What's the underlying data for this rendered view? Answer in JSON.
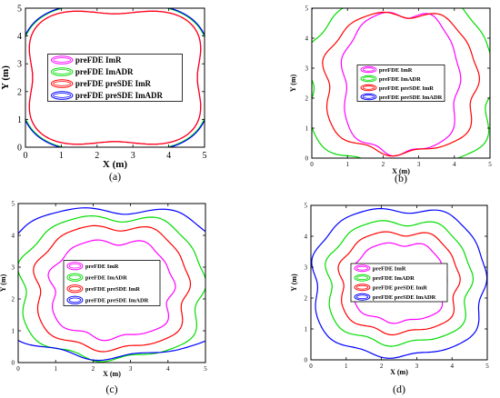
{
  "colors": {
    "magenta": "#ff00ff",
    "green": "#00dd00",
    "red": "#ff0000",
    "blue": "#0000ff"
  },
  "chart_data": [
    {
      "type": "line",
      "panel_label": "(a)",
      "xlabel": "X (m)",
      "ylabel": "Y (m)",
      "xlim": [
        0,
        5
      ],
      "ylim": [
        0,
        5
      ],
      "xticks": [
        "0",
        "1",
        "2",
        "3",
        "4",
        "5"
      ],
      "yticks": [
        "0",
        "1",
        "2",
        "3",
        "4",
        "5"
      ],
      "legend_position": "center",
      "series": [
        {
          "name": "preFDE ImR",
          "color": "magenta",
          "shape": {
            "cx": 2.5,
            "cy": 2.5,
            "rx": 2.3,
            "ry": 2.3,
            "sq": 0.25,
            "wob": 0.0
          }
        },
        {
          "name": "preFDE ImADR",
          "color": "green",
          "shape": {
            "cx": 2.5,
            "cy": 2.5,
            "rx": 2.6,
            "ry": 2.6,
            "sq": 0.15,
            "wob": 0.0
          }
        },
        {
          "name": "preFDE preSDE ImR",
          "color": "red",
          "shape": {
            "cx": 2.5,
            "cy": 2.5,
            "rx": 2.3,
            "ry": 2.3,
            "sq": 0.25,
            "wob": 0.0
          }
        },
        {
          "name": "preFDE preSDE ImADR",
          "color": "blue",
          "shape": {
            "cx": 2.5,
            "cy": 2.5,
            "rx": 2.62,
            "ry": 2.62,
            "sq": 0.15,
            "wob": 0.0
          }
        }
      ]
    },
    {
      "type": "line",
      "panel_label": "(b)",
      "xlabel": "X (m)",
      "ylabel": "Y (m)",
      "xlim": [
        0,
        5
      ],
      "ylim": [
        0,
        5
      ],
      "xticks": [
        "0",
        "1",
        "2",
        "3",
        "4",
        "5"
      ],
      "yticks": [
        "0",
        "1",
        "2",
        "3",
        "4",
        "5"
      ],
      "legend_position": "center",
      "series": [
        {
          "name": "preFDE ImR",
          "color": "magenta",
          "shape": {
            "cx": 2.5,
            "cy": 2.5,
            "rx": 1.6,
            "ry": 2.3,
            "sq": 0.1,
            "wob": 0.04
          }
        },
        {
          "name": "preFDE ImADR",
          "color": "green",
          "shape": {
            "cx": 2.5,
            "cy": 2.5,
            "rx": 2.6,
            "ry": 2.8,
            "sq": 0.1,
            "wob": 0.05
          }
        },
        {
          "name": "preFDE preSDE ImR",
          "color": "red",
          "shape": {
            "cx": 2.5,
            "cy": 2.5,
            "rx": 2.1,
            "ry": 2.3,
            "sq": 0.1,
            "wob": 0.04
          }
        },
        {
          "name": "preFDE preSDE ImADR",
          "color": "blue",
          "shape": {
            "cx": 2.5,
            "cy": 2.5,
            "rx": 3.3,
            "ry": 3.3,
            "sq": 0.1,
            "wob": 0.05
          }
        }
      ]
    },
    {
      "type": "line",
      "panel_label": "(c)",
      "xlabel": "X (m)",
      "ylabel": "Y (m)",
      "xlim": [
        0,
        5
      ],
      "ylim": [
        0,
        5
      ],
      "xticks": [
        "0",
        "1",
        "2",
        "3",
        "4",
        "5"
      ],
      "yticks": [
        "0",
        "1",
        "2",
        "3",
        "4",
        "5"
      ],
      "legend_position": "center",
      "series": [
        {
          "name": "preFDE ImR",
          "color": "magenta",
          "shape": {
            "cx": 2.5,
            "cy": 2.3,
            "rx": 1.6,
            "ry": 1.5,
            "sq": 0.1,
            "wob": 0.05
          }
        },
        {
          "name": "preFDE ImADR",
          "color": "green",
          "shape": {
            "cx": 2.5,
            "cy": 2.35,
            "rx": 2.4,
            "ry": 2.2,
            "sq": 0.1,
            "wob": 0.04
          }
        },
        {
          "name": "preFDE preSDE ImR",
          "color": "red",
          "shape": {
            "cx": 2.5,
            "cy": 2.35,
            "rx": 2.0,
            "ry": 1.9,
            "sq": 0.1,
            "wob": 0.04
          }
        },
        {
          "name": "preFDE preSDE ImADR",
          "color": "blue",
          "shape": {
            "cx": 2.5,
            "cy": 2.5,
            "rx": 3.1,
            "ry": 2.3,
            "sq": 0.1,
            "wob": 0.04
          }
        }
      ]
    },
    {
      "type": "line",
      "panel_label": "(d)",
      "xlabel": "X (m)",
      "ylabel": "Y (m)",
      "xlim": [
        0,
        5
      ],
      "ylim": [
        0,
        5
      ],
      "xticks": [
        "0",
        "1",
        "2",
        "3",
        "4",
        "5"
      ],
      "yticks": [
        "0",
        "1",
        "2",
        "3",
        "4",
        "5"
      ],
      "legend_position": "center",
      "series": [
        {
          "name": "preFDE ImR",
          "color": "magenta",
          "shape": {
            "cx": 2.5,
            "cy": 2.5,
            "rx": 1.3,
            "ry": 1.25,
            "sq": 0.1,
            "wob": 0.04
          }
        },
        {
          "name": "preFDE ImADR",
          "color": "green",
          "shape": {
            "cx": 2.5,
            "cy": 2.5,
            "rx": 2.0,
            "ry": 1.95,
            "sq": 0.1,
            "wob": 0.04
          }
        },
        {
          "name": "preFDE preSDE ImR",
          "color": "red",
          "shape": {
            "cx": 2.5,
            "cy": 2.5,
            "rx": 1.65,
            "ry": 1.6,
            "sq": 0.1,
            "wob": 0.04
          }
        },
        {
          "name": "preFDE preSDE ImADR",
          "color": "blue",
          "shape": {
            "cx": 2.5,
            "cy": 2.5,
            "rx": 2.4,
            "ry": 2.35,
            "sq": 0.1,
            "wob": 0.03
          }
        }
      ]
    }
  ]
}
